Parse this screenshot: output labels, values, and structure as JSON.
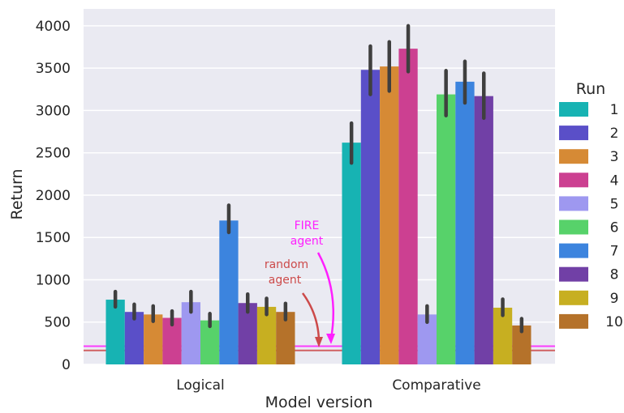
{
  "chart_data": {
    "type": "bar",
    "xlabel": "Model version",
    "ylabel": "Return",
    "ylim": [
      0,
      4200
    ],
    "yticks": [
      0,
      500,
      1000,
      1500,
      2000,
      2500,
      3000,
      3500,
      4000
    ],
    "grid": true,
    "legend_title": "Run",
    "legend_position": "right",
    "categories": [
      "Logical",
      "Comparative"
    ],
    "series": [
      {
        "name": "1",
        "color": "#17b3b3",
        "values": [
          765,
          2620
        ],
        "err_low": [
          680,
          2380
        ],
        "err_high": [
          860,
          2850
        ]
      },
      {
        "name": "2",
        "color": "#5a4fc8",
        "values": [
          620,
          3480
        ],
        "err_low": [
          540,
          3190
        ],
        "err_high": [
          710,
          3760
        ]
      },
      {
        "name": "3",
        "color": "#d68a35",
        "values": [
          590,
          3520
        ],
        "err_low": [
          510,
          3230
        ],
        "err_high": [
          690,
          3810
        ]
      },
      {
        "name": "4",
        "color": "#cc4091",
        "values": [
          550,
          3730
        ],
        "err_low": [
          470,
          3460
        ],
        "err_high": [
          630,
          4000
        ]
      },
      {
        "name": "5",
        "color": "#9e98f0",
        "values": [
          735,
          590
        ],
        "err_low": [
          620,
          500
        ],
        "err_high": [
          860,
          690
        ]
      },
      {
        "name": "6",
        "color": "#57d26a",
        "values": [
          520,
          3190
        ],
        "err_low": [
          450,
          2940
        ],
        "err_high": [
          600,
          3470
        ]
      },
      {
        "name": "7",
        "color": "#3c84de",
        "values": [
          1700,
          3340
        ],
        "err_low": [
          1560,
          3090
        ],
        "err_high": [
          1880,
          3580
        ]
      },
      {
        "name": "8",
        "color": "#7140a6",
        "values": [
          725,
          3170
        ],
        "err_low": [
          620,
          2910
        ],
        "err_high": [
          830,
          3440
        ]
      },
      {
        "name": "9",
        "color": "#c7af21",
        "values": [
          680,
          670
        ],
        "err_low": [
          590,
          580
        ],
        "err_high": [
          780,
          770
        ]
      },
      {
        "name": "10",
        "color": "#b5722a",
        "values": [
          620,
          460
        ],
        "err_low": [
          530,
          390
        ],
        "err_high": [
          720,
          540
        ]
      }
    ],
    "reference_lines": [
      {
        "label": "FIRE agent",
        "value": 215,
        "color": "#ff1fff"
      },
      {
        "label": "random agent",
        "value": 165,
        "color": "#cc4a4a"
      }
    ],
    "annotations": [
      {
        "text_lines": [
          "FIRE",
          "agent"
        ],
        "color": "#ff1fff"
      },
      {
        "text_lines": [
          "random",
          "agent"
        ],
        "color": "#cc4a4a"
      }
    ]
  }
}
